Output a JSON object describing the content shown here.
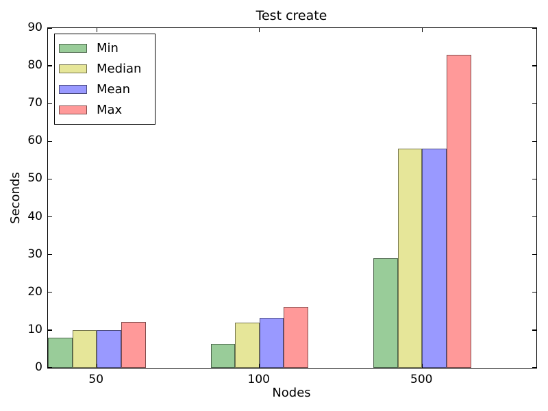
{
  "chart_data": {
    "type": "bar",
    "title": "Test create",
    "xlabel": "Nodes",
    "ylabel": "Seconds",
    "categories": [
      "50",
      "100",
      "500"
    ],
    "series": [
      {
        "name": "Min",
        "color": "#99cc99",
        "values": [
          8.0,
          6.3,
          29.0
        ]
      },
      {
        "name": "Median",
        "color": "#e6e699",
        "values": [
          10.0,
          12.0,
          58.0
        ]
      },
      {
        "name": "Mean",
        "color": "#9999ff",
        "values": [
          10.0,
          13.2,
          58.0
        ]
      },
      {
        "name": "Max",
        "color": "#ff9999",
        "values": [
          12.2,
          16.2,
          83.0
        ]
      }
    ],
    "ylim": [
      0,
      90
    ],
    "yticks": [
      0,
      10,
      20,
      30,
      40,
      50,
      60,
      70,
      80,
      90
    ],
    "legend": {
      "position": "upper-left",
      "entries": [
        "Min",
        "Median",
        "Mean",
        "Max"
      ]
    },
    "grid": false,
    "background_color": "#ffffff",
    "axis_color": "#000000",
    "bar_edge_color": "rgba(0,0,0,0.5)"
  }
}
